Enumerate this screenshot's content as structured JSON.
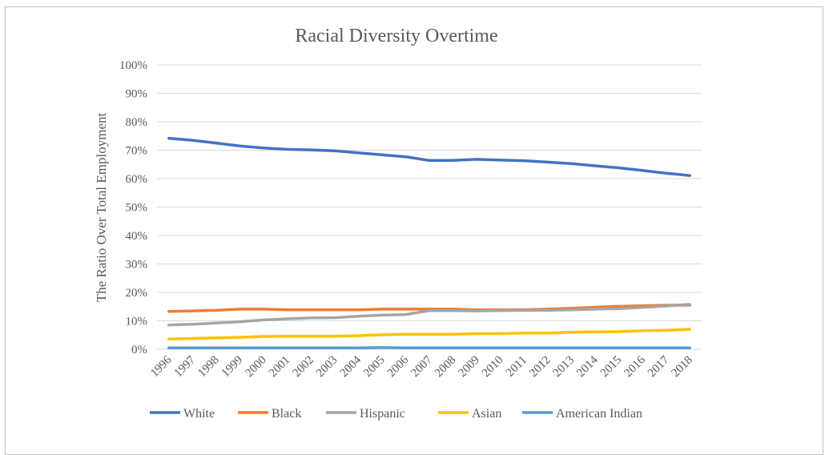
{
  "chart_data": {
    "type": "line",
    "title": "Racial Diversity Overtime",
    "xlabel": "",
    "ylabel": "The Ratio Over Total Employment",
    "ylim": [
      0,
      1
    ],
    "yticks": [
      "0%",
      "10%",
      "20%",
      "30%",
      "40%",
      "50%",
      "60%",
      "70%",
      "80%",
      "90%",
      "100%"
    ],
    "grid": true,
    "legend_position": "bottom",
    "categories": [
      "1996",
      "1997",
      "1998",
      "1999",
      "2000",
      "2001",
      "2002",
      "2003",
      "2004",
      "2005",
      "2006",
      "2007",
      "2008",
      "2009",
      "2010",
      "2011",
      "2012",
      "2013",
      "2014",
      "2015",
      "2016",
      "2017",
      "2018"
    ],
    "series": [
      {
        "name": "White",
        "color": "#4472c4",
        "values": [
          0.742,
          0.735,
          0.725,
          0.715,
          0.708,
          0.703,
          0.701,
          0.698,
          0.691,
          0.684,
          0.677,
          0.664,
          0.664,
          0.668,
          0.665,
          0.663,
          0.658,
          0.653,
          0.645,
          0.638,
          0.629,
          0.619,
          0.611
        ]
      },
      {
        "name": "Black",
        "color": "#ed7d31",
        "values": [
          0.133,
          0.135,
          0.137,
          0.141,
          0.141,
          0.139,
          0.139,
          0.139,
          0.139,
          0.141,
          0.141,
          0.141,
          0.141,
          0.139,
          0.139,
          0.139,
          0.141,
          0.144,
          0.148,
          0.151,
          0.153,
          0.155,
          0.155
        ]
      },
      {
        "name": "Hispanic",
        "color": "#a5a5a5",
        "values": [
          0.085,
          0.088,
          0.092,
          0.097,
          0.103,
          0.107,
          0.11,
          0.111,
          0.116,
          0.12,
          0.122,
          0.136,
          0.136,
          0.135,
          0.136,
          0.137,
          0.137,
          0.139,
          0.141,
          0.143,
          0.147,
          0.152,
          0.158
        ]
      },
      {
        "name": "Asian",
        "color": "#ffc000",
        "values": [
          0.036,
          0.038,
          0.04,
          0.042,
          0.045,
          0.046,
          0.046,
          0.046,
          0.048,
          0.051,
          0.053,
          0.053,
          0.053,
          0.055,
          0.055,
          0.057,
          0.057,
          0.06,
          0.061,
          0.062,
          0.065,
          0.067,
          0.07
        ]
      },
      {
        "name": "American Indian",
        "color": "#5b9bd5",
        "values": [
          0.005,
          0.005,
          0.005,
          0.005,
          0.005,
          0.005,
          0.005,
          0.005,
          0.005,
          0.006,
          0.005,
          0.005,
          0.005,
          0.005,
          0.005,
          0.005,
          0.005,
          0.005,
          0.005,
          0.005,
          0.005,
          0.005,
          0.005
        ]
      }
    ]
  }
}
